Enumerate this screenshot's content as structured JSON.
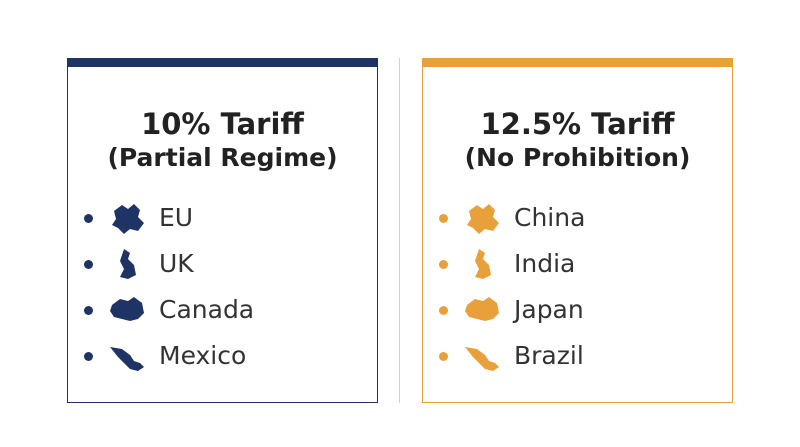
{
  "panels": [
    {
      "title": "10% Tariff",
      "subtitle": "(Partial Regime)",
      "items": [
        "EU",
        "UK",
        "Canada",
        "Mexico"
      ]
    },
    {
      "title": "12.5% Tariff",
      "subtitle": "(No Prohibition)",
      "items": [
        "China",
        "India",
        "Japan",
        "Brazil"
      ]
    }
  ]
}
